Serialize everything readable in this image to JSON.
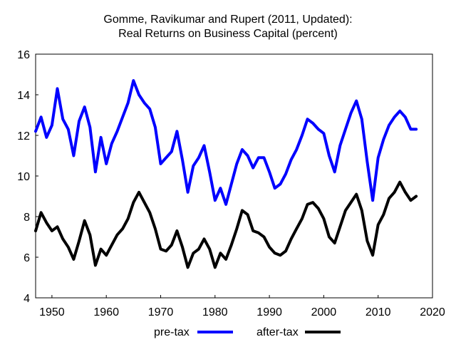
{
  "chart_data": {
    "type": "line",
    "title": "Gomme, Ravikumar and Rupert (2011, Updated):",
    "subtitle": "Real Returns on Business Capital (percent)",
    "xlim": [
      1947,
      2020
    ],
    "ylim": [
      4,
      16
    ],
    "xticks": [
      1950,
      1960,
      1970,
      1980,
      1990,
      2000,
      2010,
      2020
    ],
    "yticks": [
      4,
      6,
      8,
      10,
      12,
      14,
      16
    ],
    "grid": false,
    "legend": "bottom",
    "x": [
      1947,
      1948,
      1949,
      1950,
      1951,
      1952,
      1953,
      1954,
      1955,
      1956,
      1957,
      1958,
      1959,
      1960,
      1961,
      1962,
      1963,
      1964,
      1965,
      1966,
      1967,
      1968,
      1969,
      1970,
      1971,
      1972,
      1973,
      1974,
      1975,
      1976,
      1977,
      1978,
      1979,
      1980,
      1981,
      1982,
      1983,
      1984,
      1985,
      1986,
      1987,
      1988,
      1989,
      1990,
      1991,
      1992,
      1993,
      1994,
      1995,
      1996,
      1997,
      1998,
      1999,
      2000,
      2001,
      2002,
      2003,
      2004,
      2005,
      2006,
      2007,
      2008,
      2009,
      2010,
      2011,
      2012,
      2013,
      2014,
      2015,
      2016,
      2017
    ],
    "series": [
      {
        "name": "pre-tax",
        "color": "#0000ff",
        "values": [
          12.2,
          12.9,
          11.9,
          12.5,
          14.3,
          12.8,
          12.3,
          11.0,
          12.7,
          13.4,
          12.4,
          10.2,
          11.9,
          10.6,
          11.6,
          12.2,
          12.9,
          13.6,
          14.7,
          14.0,
          13.6,
          13.3,
          12.4,
          10.6,
          10.9,
          11.2,
          12.2,
          10.8,
          9.2,
          10.5,
          10.9,
          11.5,
          10.2,
          8.8,
          9.4,
          8.6,
          9.6,
          10.6,
          11.3,
          11.0,
          10.4,
          10.9,
          10.9,
          10.2,
          9.4,
          9.6,
          10.1,
          10.8,
          11.3,
          12.0,
          12.8,
          12.6,
          12.3,
          12.1,
          11.0,
          10.2,
          11.5,
          12.3,
          13.1,
          13.7,
          12.8,
          10.7,
          8.8,
          10.9,
          11.8,
          12.5,
          12.9,
          13.2,
          12.9,
          12.3,
          12.3
        ]
      },
      {
        "name": "after-tax",
        "color": "#000000",
        "values": [
          7.3,
          8.2,
          7.7,
          7.3,
          7.5,
          6.9,
          6.5,
          5.9,
          6.8,
          7.8,
          7.1,
          5.6,
          6.4,
          6.1,
          6.6,
          7.1,
          7.4,
          7.9,
          8.7,
          9.2,
          8.7,
          8.2,
          7.4,
          6.4,
          6.3,
          6.6,
          7.3,
          6.5,
          5.5,
          6.2,
          6.4,
          6.9,
          6.4,
          5.5,
          6.2,
          5.9,
          6.6,
          7.4,
          8.3,
          8.1,
          7.3,
          7.2,
          7.0,
          6.5,
          6.2,
          6.1,
          6.3,
          6.9,
          7.4,
          7.9,
          8.6,
          8.7,
          8.4,
          7.9,
          7.0,
          6.7,
          7.5,
          8.3,
          8.7,
          9.1,
          8.3,
          6.8,
          6.1,
          7.6,
          8.1,
          8.9,
          9.2,
          9.7,
          9.2,
          8.8,
          9.0
        ]
      }
    ]
  }
}
